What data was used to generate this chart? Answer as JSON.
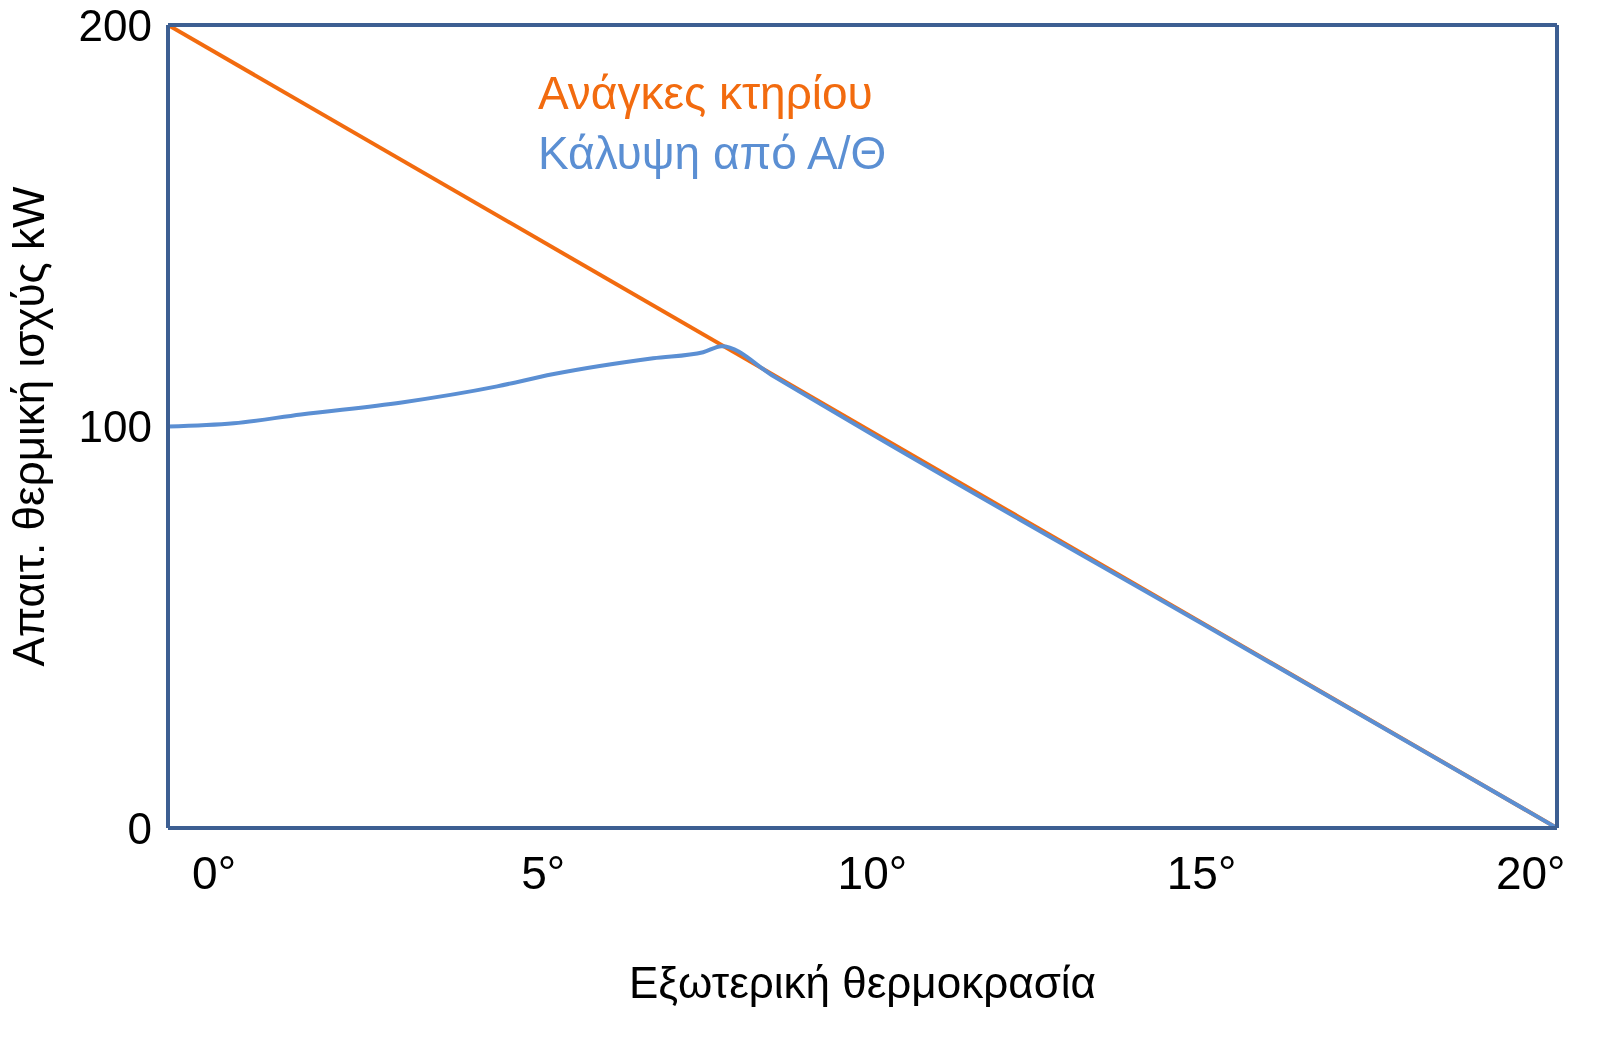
{
  "chart_data": {
    "type": "line",
    "xlabel": "Εξωτερική θερμοκρασία",
    "ylabel": "Απαιτ. θερμική ισχύς kW",
    "xlim": [
      -0.7,
      20.4
    ],
    "xticks": [
      {
        "value": 0,
        "label": "0°"
      },
      {
        "value": 5,
        "label": "5°"
      },
      {
        "value": 10,
        "label": "10°"
      },
      {
        "value": 15,
        "label": "15°"
      },
      {
        "value": 20,
        "label": "20°"
      }
    ],
    "ylim": [
      0,
      200
    ],
    "yticks": [
      0,
      100,
      200
    ],
    "grid": false,
    "legend": "top",
    "marker": "none",
    "line_style": "solid",
    "series": [
      {
        "name": "Ανάγκες κτηρίου",
        "color": "#f26b0f",
        "x": [
          -0.7,
          20.4
        ],
        "values": [
          200,
          0
        ]
      },
      {
        "name": "Κάλυψη από Α/Θ",
        "color": "#5b8fd3",
        "x": [
          -0.7,
          0.3,
          1.32,
          2.85,
          4.3,
          5.14,
          6.67,
          7.43,
          7.71,
          8.5,
          10,
          15,
          20.4
        ],
        "values": [
          100,
          100.8,
          103,
          106,
          110,
          113,
          117,
          118.5,
          120,
          112.5,
          98,
          51,
          0
        ]
      }
    ]
  }
}
